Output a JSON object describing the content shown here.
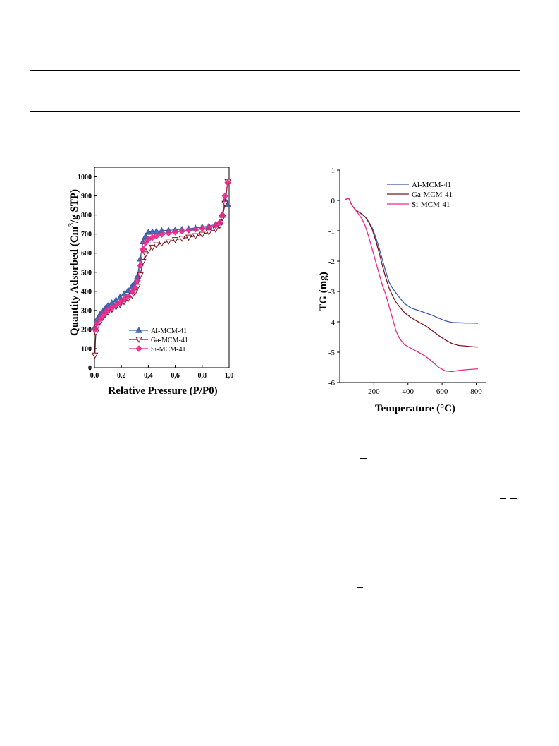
{
  "page": {
    "dashes": [
      "–",
      "–",
      "–",
      "–",
      "–",
      "–"
    ]
  },
  "colors": {
    "al": "#3a5ba8",
    "ga": "#7b1620",
    "si": "#e8298a",
    "axis": "#000000"
  },
  "chart_data": [
    {
      "type": "scatter",
      "title": "",
      "xlabel": "Relative Pressure (P/P0)",
      "ylabel_main": "Quantity Adsorbed (Cm",
      "ylabel_sup": "3",
      "ylabel_rest": "/g STP)",
      "xlim": [
        0,
        1.0
      ],
      "ylim": [
        0,
        1050
      ],
      "xticks": [
        0,
        0.2,
        0.4,
        0.6,
        0.8,
        1.0
      ],
      "xtick_labels": [
        "0,0",
        "0,2",
        "0,4",
        "0,6",
        "0,8",
        "1,0"
      ],
      "yticks": [
        0,
        100,
        200,
        300,
        400,
        500,
        600,
        700,
        800,
        900,
        1000
      ],
      "ytick_labels": [
        "0",
        "100",
        "200",
        "300",
        "400",
        "500",
        "600",
        "700",
        "800",
        "900",
        "1000"
      ],
      "grid": false,
      "legend_position": "lower-right",
      "series": [
        {
          "name": "Al-MCM-41",
          "marker": "triangle-up",
          "color": "#3a5ba8",
          "x": [
            0.005,
            0.02,
            0.04,
            0.06,
            0.08,
            0.1,
            0.13,
            0.16,
            0.19,
            0.22,
            0.25,
            0.28,
            0.3,
            0.32,
            0.34,
            0.36,
            0.38,
            0.4,
            0.43,
            0.46,
            0.5,
            0.55,
            0.6,
            0.65,
            0.7,
            0.75,
            0.8,
            0.85,
            0.9,
            0.93,
            0.95,
            0.97,
            0.99
          ],
          "y": [
            215,
            255,
            278,
            298,
            312,
            325,
            340,
            355,
            370,
            387,
            405,
            428,
            445,
            480,
            570,
            660,
            690,
            710,
            712,
            715,
            718,
            720,
            722,
            725,
            728,
            732,
            737,
            742,
            750,
            762,
            800,
            880,
            855
          ]
        },
        {
          "name": "Ga-MCM-41",
          "marker": "triangle-down",
          "color": "#7b1620",
          "x": [
            0.003,
            0.01,
            0.02,
            0.04,
            0.06,
            0.08,
            0.1,
            0.13,
            0.16,
            0.19,
            0.22,
            0.25,
            0.28,
            0.3,
            0.32,
            0.34,
            0.36,
            0.38,
            0.4,
            0.43,
            0.46,
            0.5,
            0.55,
            0.6,
            0.65,
            0.7,
            0.75,
            0.8,
            0.85,
            0.9,
            0.93,
            0.95,
            0.97,
            0.99
          ],
          "y": [
            65,
            185,
            215,
            240,
            262,
            278,
            290,
            305,
            318,
            330,
            345,
            360,
            378,
            395,
            425,
            485,
            555,
            595,
            615,
            630,
            642,
            652,
            662,
            670,
            677,
            683,
            690,
            698,
            710,
            725,
            745,
            785,
            860,
            975
          ]
        },
        {
          "name": "Si-MCM-41",
          "marker": "diamond",
          "color": "#e8298a",
          "x": [
            0.005,
            0.02,
            0.04,
            0.06,
            0.08,
            0.1,
            0.13,
            0.16,
            0.19,
            0.22,
            0.25,
            0.28,
            0.3,
            0.32,
            0.34,
            0.36,
            0.38,
            0.4,
            0.43,
            0.46,
            0.5,
            0.55,
            0.6,
            0.65,
            0.7,
            0.75,
            0.8,
            0.85,
            0.9,
            0.93,
            0.95,
            0.97,
            0.99
          ],
          "y": [
            200,
            232,
            255,
            272,
            288,
            300,
            315,
            328,
            342,
            358,
            375,
            398,
            420,
            455,
            535,
            620,
            655,
            672,
            682,
            690,
            698,
            705,
            710,
            715,
            720,
            725,
            730,
            735,
            745,
            760,
            800,
            900,
            970
          ]
        }
      ]
    },
    {
      "type": "line",
      "title": "",
      "xlabel": "Temperature (°C)",
      "ylabel": "TG (mg)",
      "xlim": [
        0,
        860
      ],
      "ylim": [
        -6,
        1
      ],
      "xticks": [
        200,
        400,
        600,
        800
      ],
      "xtick_labels": [
        "200",
        "400",
        "600",
        "800"
      ],
      "yticks": [
        1,
        0,
        -1,
        -2,
        -3,
        -4,
        -5,
        -6
      ],
      "ytick_labels": [
        "1",
        "0",
        "-1",
        "-2",
        "-3",
        "-4",
        "-5",
        "-6"
      ],
      "grid": false,
      "legend_position": "top-center",
      "series": [
        {
          "name": "Al-MCM-41",
          "color": "#3a5ba8",
          "x": [
            30,
            45,
            55,
            70,
            90,
            110,
            130,
            150,
            170,
            190,
            210,
            230,
            250,
            270,
            290,
            310,
            330,
            350,
            380,
            420,
            460,
            500,
            540,
            580,
            620,
            660,
            700,
            740,
            780,
            810
          ],
          "y": [
            0.0,
            0.08,
            0.05,
            -0.15,
            -0.3,
            -0.38,
            -0.45,
            -0.55,
            -0.7,
            -0.9,
            -1.2,
            -1.55,
            -1.95,
            -2.35,
            -2.7,
            -2.9,
            -3.05,
            -3.2,
            -3.4,
            -3.55,
            -3.62,
            -3.7,
            -3.78,
            -3.88,
            -3.97,
            -4.02,
            -4.03,
            -4.04,
            -4.04,
            -4.05
          ]
        },
        {
          "name": "Ga-MCM-41",
          "color": "#7b1620",
          "x": [
            30,
            45,
            55,
            70,
            90,
            110,
            130,
            150,
            170,
            190,
            210,
            230,
            250,
            270,
            290,
            310,
            330,
            350,
            380,
            420,
            460,
            500,
            540,
            580,
            620,
            660,
            700,
            740,
            780,
            810
          ],
          "y": [
            0.0,
            0.08,
            0.05,
            -0.15,
            -0.3,
            -0.38,
            -0.45,
            -0.55,
            -0.72,
            -0.95,
            -1.3,
            -1.7,
            -2.15,
            -2.55,
            -2.9,
            -3.15,
            -3.35,
            -3.5,
            -3.7,
            -3.87,
            -4.0,
            -4.12,
            -4.28,
            -4.45,
            -4.6,
            -4.72,
            -4.78,
            -4.8,
            -4.82,
            -4.83
          ]
        },
        {
          "name": "Si-MCM-41",
          "color": "#e8298a",
          "x": [
            30,
            45,
            55,
            70,
            90,
            110,
            130,
            150,
            170,
            190,
            210,
            230,
            250,
            270,
            290,
            310,
            330,
            350,
            380,
            420,
            460,
            500,
            540,
            580,
            620,
            660,
            700,
            740,
            780,
            810
          ],
          "y": [
            0.0,
            0.08,
            0.05,
            -0.15,
            -0.3,
            -0.45,
            -0.6,
            -0.85,
            -1.2,
            -1.6,
            -2.0,
            -2.4,
            -2.8,
            -3.1,
            -3.5,
            -3.9,
            -4.3,
            -4.55,
            -4.75,
            -4.88,
            -5.0,
            -5.12,
            -5.3,
            -5.5,
            -5.62,
            -5.64,
            -5.6,
            -5.58,
            -5.56,
            -5.55
          ]
        }
      ]
    }
  ]
}
